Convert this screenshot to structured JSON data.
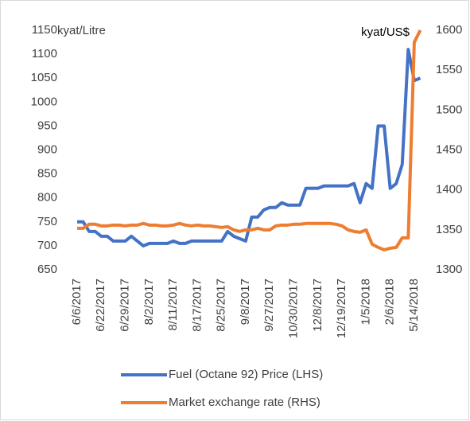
{
  "chart_data": {
    "type": "line",
    "y_label": "kyat/Litre",
    "y2_label": "kyat/US$",
    "categories": [
      "6/6/2017",
      null,
      null,
      null,
      "6/22/2017",
      null,
      null,
      null,
      "6/29/2017",
      null,
      null,
      null,
      "8/2/2017",
      null,
      null,
      null,
      "8/11/2017",
      null,
      null,
      null,
      "8/17/2017",
      null,
      null,
      null,
      "8/25/2017",
      null,
      null,
      null,
      "9/8/2017",
      null,
      null,
      null,
      "9/27/2017",
      null,
      null,
      null,
      "10/30/2017",
      null,
      null,
      null,
      "12/8/2017",
      null,
      null,
      null,
      "12/19/2017",
      null,
      null,
      null,
      "1/5/2018",
      null,
      null,
      null,
      "2/6/2018",
      null,
      null,
      null,
      "5/14/2018",
      null
    ],
    "series": [
      {
        "name": "Fuel (Octane 92) Price (LHS)",
        "color": "#4472c4",
        "values": [
          750,
          750,
          730,
          730,
          720,
          720,
          710,
          710,
          710,
          720,
          710,
          700,
          705,
          705,
          705,
          705,
          710,
          705,
          705,
          710,
          710,
          710,
          710,
          710,
          710,
          730,
          720,
          715,
          710,
          760,
          760,
          775,
          780,
          780,
          790,
          785,
          785,
          785,
          820,
          820,
          820,
          825,
          825,
          825,
          825,
          825,
          830,
          790,
          830,
          820,
          950,
          950,
          820,
          830,
          870,
          1110,
          1045,
          1050
        ]
      },
      {
        "name": "Market exchange rate (RHS)",
        "color": "#ed7d31",
        "axis": "y2",
        "values": [
          1352,
          1352,
          1357,
          1357,
          1355,
          1355,
          1356,
          1356,
          1355,
          1356,
          1356,
          1358,
          1356,
          1356,
          1355,
          1355,
          1356,
          1358,
          1356,
          1355,
          1356,
          1355,
          1355,
          1354,
          1353,
          1354,
          1350,
          1348,
          1350,
          1350,
          1352,
          1350,
          1350,
          1355,
          1356,
          1356,
          1357,
          1357,
          1358,
          1358,
          1358,
          1358,
          1358,
          1357,
          1355,
          1350,
          1348,
          1347,
          1350,
          1332,
          1328,
          1325,
          1327,
          1328,
          1340,
          1340,
          1585,
          1600
        ]
      }
    ],
    "ylim": [
      650,
      1150
    ],
    "yticks": [
      650,
      700,
      750,
      800,
      850,
      900,
      950,
      1000,
      1050,
      1100,
      1150
    ],
    "y2lim": [
      1300,
      1600
    ],
    "y2ticks": [
      1300,
      1350,
      1400,
      1450,
      1500,
      1550,
      1600
    ],
    "grid": false,
    "legend": "bottom"
  }
}
